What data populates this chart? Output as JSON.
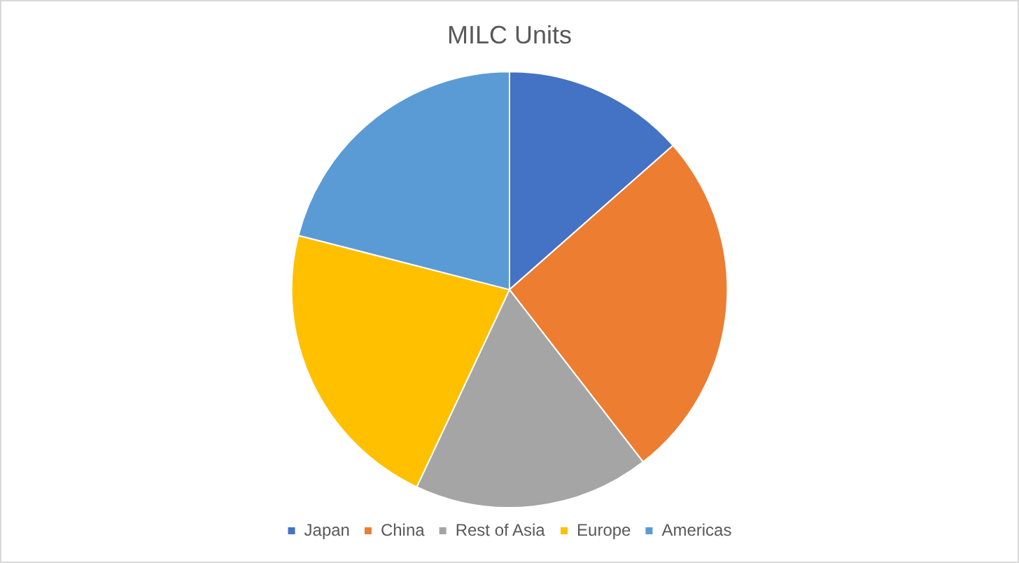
{
  "chart_data": {
    "type": "pie",
    "title": "MILC Units",
    "categories": [
      "Japan",
      "China",
      "Rest of Asia",
      "Europe",
      "Americas"
    ],
    "values": [
      13.5,
      26,
      17.5,
      22,
      21
    ],
    "colors": [
      "#4472c4",
      "#ed7d31",
      "#a5a5a5",
      "#ffc000",
      "#5b9bd5"
    ],
    "legend": "bottom"
  }
}
